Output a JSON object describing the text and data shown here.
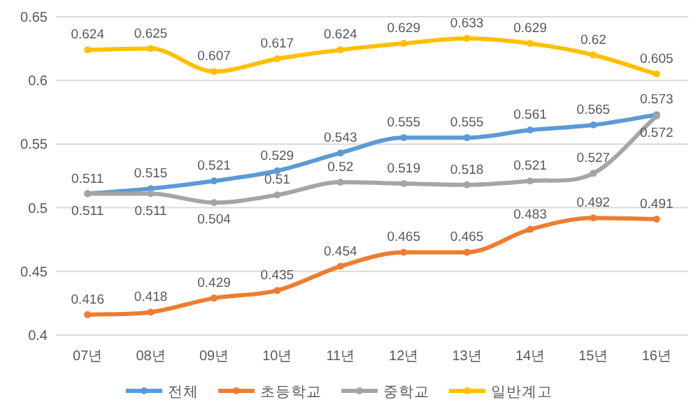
{
  "chart_data": {
    "type": "line",
    "categories": [
      "07년",
      "08년",
      "09년",
      "10년",
      "11년",
      "12년",
      "13년",
      "14년",
      "15년",
      "16년"
    ],
    "series": [
      {
        "name": "전체",
        "color": "#5b9bd5",
        "values": [
          0.511,
          0.515,
          0.521,
          0.529,
          0.543,
          0.555,
          0.555,
          0.561,
          0.565,
          0.573
        ]
      },
      {
        "name": "초등학교",
        "color": "#ed7d31",
        "values": [
          0.416,
          0.418,
          0.429,
          0.435,
          0.454,
          0.465,
          0.465,
          0.483,
          0.492,
          0.491
        ]
      },
      {
        "name": "중학교",
        "color": "#a5a5a5",
        "values": [
          0.511,
          0.511,
          0.504,
          0.51,
          0.52,
          0.519,
          0.518,
          0.521,
          0.527,
          0.572
        ]
      },
      {
        "name": "일반계고",
        "color": "#ffc000",
        "values": [
          0.624,
          0.625,
          0.607,
          0.617,
          0.624,
          0.629,
          0.633,
          0.629,
          0.62,
          0.605
        ]
      }
    ],
    "ylim": [
      0.4,
      0.65
    ],
    "yticks": [
      0.4,
      0.45,
      0.5,
      0.55,
      0.6,
      0.65
    ],
    "grid": "y",
    "legend": "bottom",
    "data_labels": true,
    "marker": "circle",
    "line_style": "solid"
  }
}
